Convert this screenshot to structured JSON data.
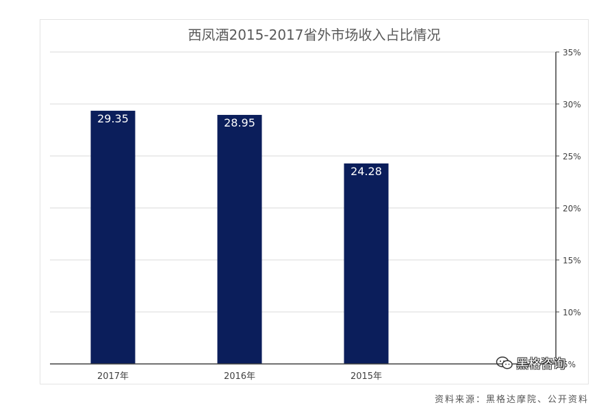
{
  "chart_data": {
    "type": "bar",
    "title": "西凤酒2015-2017省外市场收入占比情况",
    "categories": [
      "2017年",
      "2016年",
      "2015年"
    ],
    "series": [
      {
        "values": [
          29.35,
          28.95,
          24.28
        ]
      }
    ],
    "data_labels": [
      "29.35",
      "28.95",
      "24.28"
    ],
    "y_axis": {
      "position": "right",
      "range": [
        5,
        35
      ],
      "ticks": [
        35,
        30,
        25,
        20,
        15,
        10,
        5
      ],
      "tick_labels": [
        "35%",
        "30%",
        "25%",
        "20%",
        "15%",
        "10%",
        "5%"
      ]
    },
    "grid": true,
    "bar_color": "#0b1e5b"
  },
  "source_note": "资料来源：黑格达摩院、公开资料",
  "watermark": {
    "text": "黑格咨询",
    "icon": "wechat-icon"
  }
}
